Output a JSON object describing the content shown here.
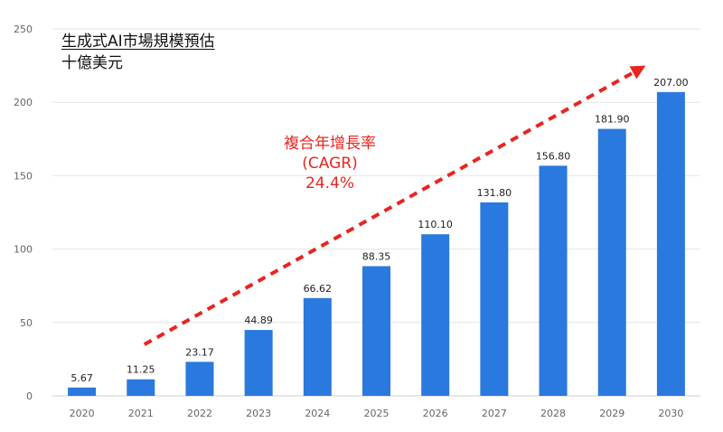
{
  "chart_data": {
    "type": "bar",
    "title": "生成式AI市場規模預估",
    "subtitle": "十億美元",
    "categories": [
      "2020",
      "2021",
      "2022",
      "2023",
      "2024",
      "2025",
      "2026",
      "2027",
      "2028",
      "2029",
      "2030"
    ],
    "values": [
      5.67,
      11.25,
      23.17,
      44.89,
      66.62,
      88.35,
      110.1,
      131.8,
      156.8,
      181.9,
      207.0
    ],
    "data_labels": [
      "5.67",
      "11.25",
      "23.17",
      "44.89",
      "66.62",
      "88.35",
      "110.10",
      "131.80",
      "156.80",
      "181.90",
      "207.00"
    ],
    "y_ticks": [
      "0",
      "50",
      "100",
      "150",
      "200",
      "250"
    ],
    "ylim": [
      0,
      250
    ],
    "grid": true,
    "bar_color": "#2a79de",
    "annotation": {
      "lines": [
        "複合年增長率",
        "(CAGR)",
        "24.4%"
      ],
      "color": "#e8251f",
      "arrow_from": [
        "2021",
        35
      ],
      "arrow_to": [
        "2030",
        225
      ]
    }
  }
}
